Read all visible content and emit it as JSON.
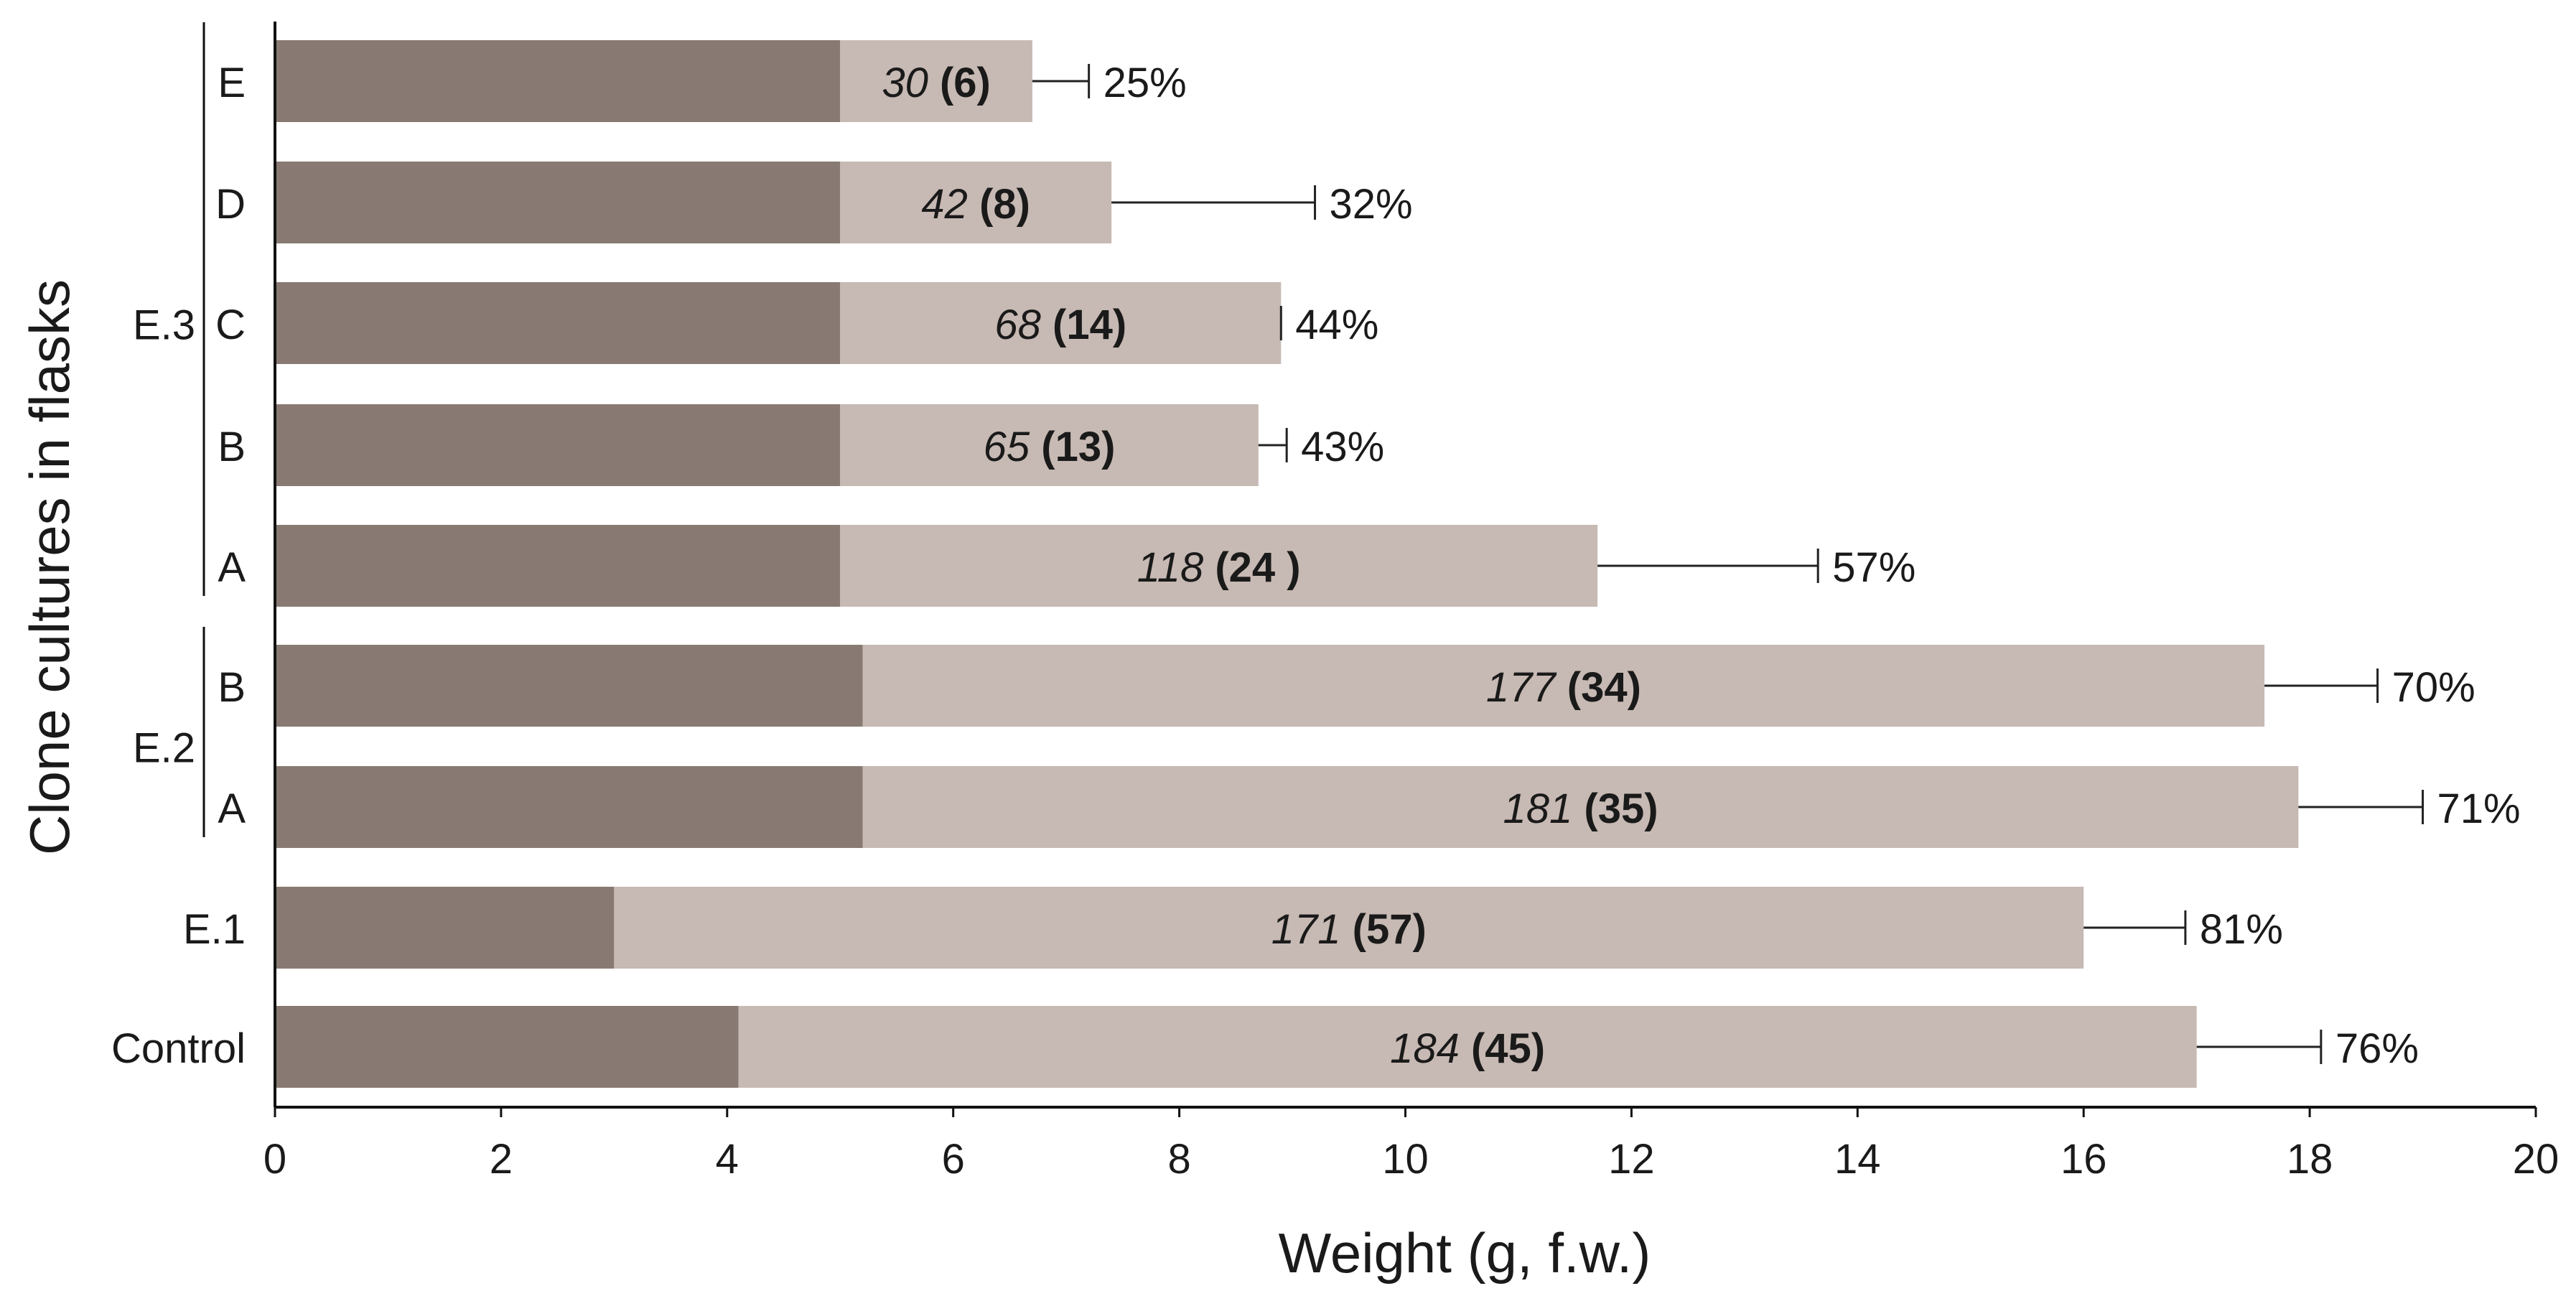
{
  "chart_data": {
    "type": "bar",
    "orientation": "horizontal",
    "stacked": true,
    "title": "",
    "xlabel": "Weight (g, f.w.)",
    "ylabel": "Clone cultures in flasks",
    "xlim": [
      0,
      20
    ],
    "xticks": [
      0,
      2,
      4,
      6,
      8,
      10,
      12,
      14,
      16,
      18,
      20
    ],
    "grid": false,
    "legend": "none",
    "colors": {
      "initial": "#887a72",
      "increase": "#c7b9b3",
      "axis": "#111111"
    },
    "groups": [
      {
        "label": "E.3",
        "members": [
          "E",
          "D",
          "C",
          "B",
          "A"
        ]
      },
      {
        "label": "E.2",
        "members": [
          "B",
          "A"
        ]
      },
      {
        "label": "E.1",
        "members": []
      },
      {
        "label": "Control",
        "members": []
      }
    ],
    "rows": [
      {
        "label": "E",
        "group": "E.3",
        "initial": 5.0,
        "total": 6.7,
        "error_end": 7.2,
        "value_label": "30",
        "paren_label": "(6)",
        "percent_label": "25%"
      },
      {
        "label": "D",
        "group": "E.3",
        "initial": 5.0,
        "total": 7.4,
        "error_end": 9.2,
        "value_label": "42",
        "paren_label": "(8)",
        "percent_label": "32%"
      },
      {
        "label": "C",
        "group": "E.3",
        "initial": 5.0,
        "total": 8.9,
        "error_end": 8.9,
        "value_label": "68",
        "paren_label": "(14)",
        "percent_label": "44%"
      },
      {
        "label": "B",
        "group": "E.3",
        "initial": 5.0,
        "total": 8.7,
        "error_end": 8.95,
        "value_label": "65",
        "paren_label": "(13)",
        "percent_label": "43%"
      },
      {
        "label": "A",
        "group": "E.3",
        "initial": 5.0,
        "total": 11.7,
        "error_end": 13.65,
        "value_label": "118",
        "paren_label": "(24 )",
        "percent_label": "57%"
      },
      {
        "label": "B",
        "group": "E.2",
        "initial": 5.2,
        "total": 17.6,
        "error_end": 18.6,
        "value_label": "177",
        "paren_label": "(34)",
        "percent_label": "70%"
      },
      {
        "label": "A",
        "group": "E.2",
        "initial": 5.2,
        "total": 17.9,
        "error_end": 19.0,
        "value_label": "181",
        "paren_label": "(35)",
        "percent_label": "71%"
      },
      {
        "label": "E.1",
        "group": "E.1",
        "initial": 3.0,
        "total": 16.0,
        "error_end": 16.9,
        "value_label": "171",
        "paren_label": "(57)",
        "percent_label": "81%"
      },
      {
        "label": "Control",
        "group": "Control",
        "initial": 4.1,
        "total": 17.0,
        "error_end": 18.1,
        "value_label": "184",
        "paren_label": "(45)",
        "percent_label": "76%"
      }
    ]
  }
}
